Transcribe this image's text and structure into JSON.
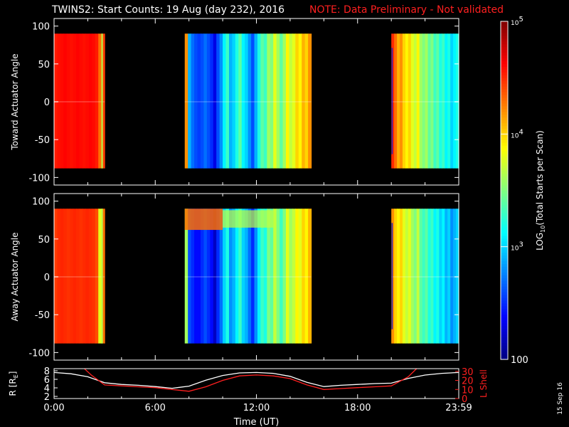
{
  "title": "TWINS2: Start Counts: 19 Aug (day 232), 2016",
  "note": "NOTE: Data Preliminary - Not validated",
  "stamp": "15 Sep 16",
  "colors": {
    "background": "#000000",
    "axes": "#ffffff",
    "note": "#ff2020",
    "r_line": "#ffffff",
    "lshell_line": "#ff2020"
  },
  "chart_data": [
    {
      "type": "heatmap",
      "name": "toward",
      "ylabel": "Toward Actuator Angle",
      "ylim": [
        -110,
        110
      ],
      "yticks": [
        100,
        50,
        0,
        -50,
        -100
      ],
      "xlim_hours": [
        0,
        24
      ],
      "data_ylim": [
        -88,
        90
      ],
      "colorscale": "log10 counts, jet",
      "data_intervals_hours": [
        [
          0.0,
          3.0
        ],
        [
          7.75,
          15.25
        ],
        [
          20.0,
          24.0
        ]
      ],
      "value_profile_note": "log10 counts per time column",
      "segments": [
        {
          "start": 0.0,
          "end": 3.0,
          "log_values": [
            4.55,
            4.58,
            4.6,
            4.62,
            4.6,
            4.58,
            4.6,
            4.62,
            4.6,
            4.58,
            4.6,
            4.62,
            4.6,
            4.55,
            4.3,
            4.45
          ]
        },
        {
          "start": 7.75,
          "end": 15.25,
          "log_values": [
            4.2,
            2.9,
            2.7,
            2.6,
            2.55,
            2.6,
            2.7,
            2.6,
            2.5,
            2.3,
            2.6,
            2.8,
            3.1,
            3.3,
            2.9,
            3.0,
            3.2,
            3.4,
            3.1,
            3.0,
            2.8,
            2.6,
            2.9,
            3.2,
            3.4,
            3.3,
            3.6,
            3.5,
            3.8,
            3.6,
            3.4,
            3.6,
            3.9,
            3.7,
            3.8,
            4.0,
            3.9,
            4.1,
            4.0,
            4.2
          ]
        },
        {
          "start": 20.0,
          "end": 24.0,
          "log_values": [
            4.5,
            4.3,
            4.1,
            4.2,
            4.0,
            3.9,
            4.0,
            3.8,
            3.7,
            3.9,
            3.6,
            3.5,
            3.6,
            3.4,
            3.5,
            3.3,
            3.4,
            3.2,
            3.3,
            3.1,
            3.2,
            3.0,
            3.1,
            3.2
          ]
        }
      ]
    },
    {
      "type": "heatmap",
      "name": "away",
      "ylabel": "Away Actuator Angle",
      "ylim": [
        -110,
        110
      ],
      "yticks": [
        100,
        50,
        0,
        -50,
        -100
      ],
      "xlim_hours": [
        0,
        24
      ],
      "data_ylim": [
        -88,
        90
      ],
      "colorscale": "log10 counts, jet",
      "data_intervals_hours": [
        [
          0.0,
          3.0
        ],
        [
          7.75,
          15.25
        ],
        [
          20.0,
          24.0
        ]
      ],
      "segments": [
        {
          "start": 0.0,
          "end": 3.0,
          "log_values": [
            4.45,
            4.5,
            4.52,
            4.5,
            4.48,
            4.5,
            4.52,
            4.5,
            4.48,
            4.5,
            4.52,
            4.5,
            4.48,
            4.4,
            3.8,
            4.3
          ]
        },
        {
          "start": 7.75,
          "end": 15.25,
          "log_values": [
            3.6,
            2.6,
            2.5,
            2.4,
            2.4,
            2.5,
            2.6,
            2.5,
            2.4,
            2.2,
            2.5,
            2.7,
            3.0,
            3.2,
            2.8,
            2.9,
            3.1,
            3.3,
            3.0,
            2.9,
            2.7,
            2.5,
            2.8,
            3.1,
            3.3,
            3.2,
            3.5,
            3.4,
            3.7,
            3.5,
            3.3,
            3.5,
            3.8,
            3.6,
            3.7,
            3.9,
            3.8,
            4.0,
            3.9,
            4.1
          ]
        },
        {
          "start": 20.0,
          "end": 24.0,
          "log_values": [
            4.2,
            4.0,
            3.9,
            4.0,
            3.8,
            3.7,
            3.8,
            3.6,
            3.5,
            3.7,
            3.4,
            3.3,
            3.4,
            3.2,
            3.3,
            3.1,
            3.2,
            3.0,
            3.1,
            2.9,
            3.0,
            2.8,
            2.9,
            3.0
          ]
        }
      ],
      "band_note": "enhanced counts near +70 deg during 7.75-10 h"
    },
    {
      "type": "line",
      "name": "orbit",
      "xlabel": "Time (UT)",
      "xticks": [
        "0:00",
        "6:00",
        "12:00",
        "18:00",
        "23:59"
      ],
      "xlim_hours": [
        0,
        24
      ],
      "ylabel_left": "R [R",
      "ylabel_left_sub": "E",
      "ylabel_left_end": "]",
      "ylim_left": [
        1.5,
        8.5
      ],
      "yticks_left": [
        2,
        4,
        6,
        8
      ],
      "ylabel_right": "L Shell",
      "ylim_right": [
        0,
        33
      ],
      "yticks_right": [
        0,
        10,
        20,
        30
      ],
      "series": [
        {
          "name": "R",
          "axis": "left",
          "x": [
            0,
            1,
            2,
            3,
            4,
            5,
            6,
            7,
            8,
            9,
            10,
            11,
            12,
            13,
            14,
            15,
            16,
            17,
            18,
            19,
            20,
            21,
            22,
            23,
            24
          ],
          "y": [
            7.6,
            7.3,
            6.6,
            5.2,
            4.8,
            4.6,
            4.3,
            3.9,
            4.4,
            5.8,
            6.9,
            7.5,
            7.6,
            7.4,
            6.7,
            5.3,
            4.3,
            4.6,
            4.8,
            5.0,
            5.1,
            6.2,
            7.0,
            7.4,
            7.6
          ]
        },
        {
          "name": "L Shell",
          "axis": "right",
          "x": [
            1.8,
            2.2,
            3.0,
            4.0,
            5.0,
            6.0,
            7.0,
            8.0,
            9.0,
            10.0,
            11.0,
            12.0,
            13.0,
            14.0,
            15.0,
            16.0,
            17.0,
            18.0,
            19.0,
            20.0,
            21.0,
            21.5
          ],
          "y": [
            33,
            26,
            15,
            14,
            13,
            12,
            10,
            8,
            13,
            20,
            25,
            26,
            25,
            22,
            15,
            10,
            11,
            12,
            13,
            14,
            24,
            33
          ]
        }
      ]
    },
    {
      "type": "colorbar",
      "name": "colorbar",
      "label_pre": "LOG",
      "label_sub": "10",
      "label_post": "(Total Starts per Scan)",
      "range": [
        100,
        100000
      ],
      "log": true,
      "tick_labels": [
        {
          "base": "10",
          "exp": "5",
          "value": 100000
        },
        {
          "base": "10",
          "exp": "4",
          "value": 10000
        },
        {
          "base": "10",
          "exp": "3",
          "value": 1000
        },
        {
          "base": "100",
          "exp": "",
          "value": 100
        }
      ]
    }
  ]
}
